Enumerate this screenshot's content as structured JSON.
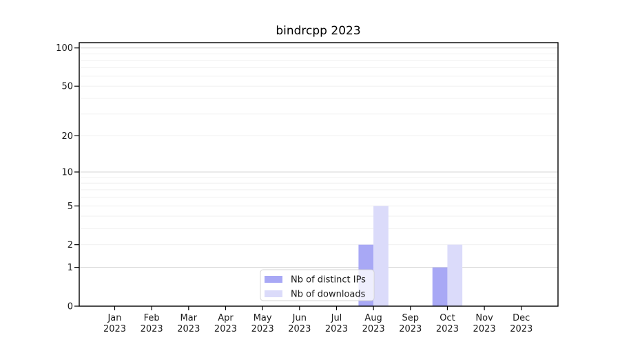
{
  "window": {
    "background": "#ffffff"
  },
  "chart_data": {
    "type": "bar",
    "title": "bindrcpp 2023",
    "categories": [
      {
        "month": "Jan",
        "year": "2023"
      },
      {
        "month": "Feb",
        "year": "2023"
      },
      {
        "month": "Mar",
        "year": "2023"
      },
      {
        "month": "Apr",
        "year": "2023"
      },
      {
        "month": "May",
        "year": "2023"
      },
      {
        "month": "Jun",
        "year": "2023"
      },
      {
        "month": "Jul",
        "year": "2023"
      },
      {
        "month": "Aug",
        "year": "2023"
      },
      {
        "month": "Sep",
        "year": "2023"
      },
      {
        "month": "Oct",
        "year": "2023"
      },
      {
        "month": "Nov",
        "year": "2023"
      },
      {
        "month": "Dec",
        "year": "2023"
      }
    ],
    "series": [
      {
        "name": "Nb of distinct IPs",
        "color": "#a8a8f5",
        "values": [
          0,
          0,
          0,
          0,
          0,
          0,
          0,
          2,
          0,
          1,
          0,
          0
        ]
      },
      {
        "name": "Nb of downloads",
        "color": "#dbdbfa",
        "values": [
          0,
          0,
          0,
          0,
          0,
          0,
          0,
          5,
          0,
          2,
          0,
          0
        ]
      }
    ],
    "xlabel": "",
    "ylabel": "",
    "yscale": "log1p",
    "ylim": [
      0,
      110
    ],
    "yticks": [
      0,
      1,
      2,
      5,
      10,
      20,
      50,
      100
    ],
    "grid": {
      "major": [
        1,
        10,
        100
      ],
      "minor": [
        2,
        3,
        4,
        5,
        6,
        7,
        8,
        9,
        20,
        30,
        40,
        50,
        60,
        70,
        80,
        90
      ],
      "major_color": "#d6d6d6",
      "minor_color": "#f0f0f0"
    },
    "legend": {
      "position": "lower center",
      "entries": [
        "Nb of distinct IPs",
        "Nb of downloads"
      ],
      "background": "#ffffff",
      "border_color": "#cccccc"
    },
    "axis_color": "#000000",
    "text_color": "#1a1a1a"
  }
}
